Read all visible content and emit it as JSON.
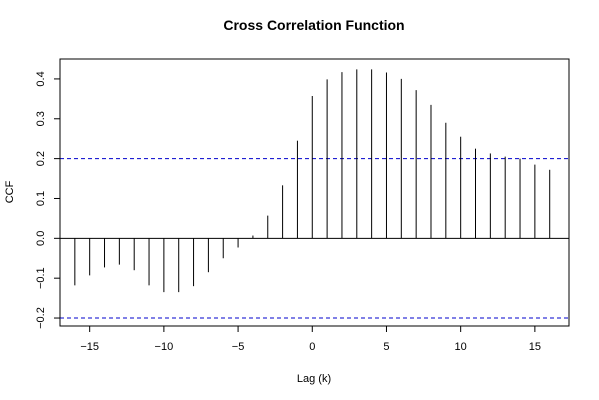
{
  "chart_data": {
    "type": "bar",
    "title": "Cross Correlation Function",
    "xlabel": "Lag (k)",
    "ylabel": "CCF",
    "x": [
      -16,
      -15,
      -14,
      -13,
      -12,
      -11,
      -10,
      -9,
      -8,
      -7,
      -6,
      -5,
      -4,
      -3,
      -2,
      -1,
      0,
      1,
      2,
      3,
      4,
      5,
      6,
      7,
      8,
      9,
      10,
      11,
      12,
      13,
      14,
      15,
      16
    ],
    "values": [
      -0.118,
      -0.093,
      -0.073,
      -0.066,
      -0.08,
      -0.118,
      -0.135,
      -0.135,
      -0.12,
      -0.085,
      -0.05,
      -0.023,
      0.007,
      0.057,
      0.133,
      0.245,
      0.357,
      0.399,
      0.417,
      0.424,
      0.424,
      0.416,
      0.4,
      0.372,
      0.335,
      0.29,
      0.255,
      0.225,
      0.213,
      0.205,
      0.2,
      0.185,
      0.172
    ],
    "xlim": [
      -17,
      17.3
    ],
    "ylim": [
      -0.22,
      0.45
    ],
    "xticks": [
      "−15",
      "−10",
      "−5",
      "0",
      "5",
      "10",
      "15"
    ],
    "xtick_values": [
      -15,
      -10,
      -5,
      0,
      5,
      10,
      15
    ],
    "yticks": [
      "−0.2",
      "−0.1",
      "0.0",
      "0.1",
      "0.2",
      "0.3",
      "0.4"
    ],
    "ytick_values": [
      -0.2,
      -0.1,
      0.0,
      0.1,
      0.2,
      0.3,
      0.4
    ],
    "confidence_bounds": [
      0.2,
      -0.2
    ],
    "colors": {
      "bars": "#000000",
      "confidence": "#0000cc",
      "zero_line": "#000000"
    },
    "grid": false
  }
}
